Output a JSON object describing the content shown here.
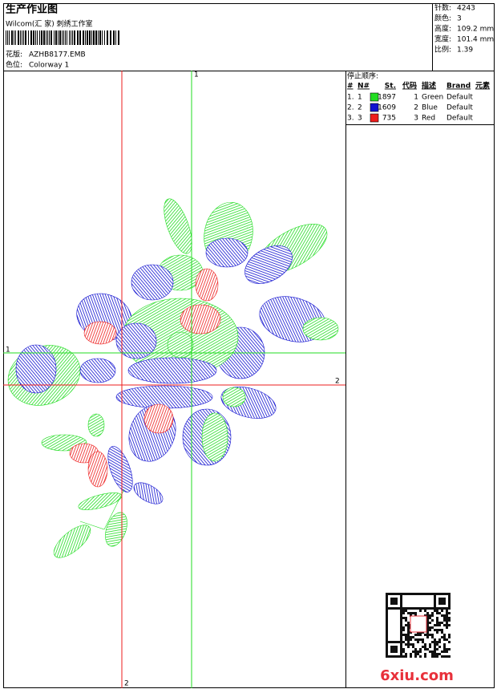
{
  "header": {
    "title": "生产作业图",
    "studio": "Wilcom(汇 家) 刺绣工作室",
    "design_label": "花版:",
    "design": "AZHB8177.EMB",
    "colorway_label": "色位:",
    "colorway": "Colorway 1"
  },
  "stats": [
    {
      "label": "针数:",
      "value": "4243"
    },
    {
      "label": "颜色:",
      "value": "3"
    },
    {
      "label": "高度:",
      "value": "109.2 mm"
    },
    {
      "label": "宽度:",
      "value": "101.4 mm"
    },
    {
      "label": "比例:",
      "value": "1.39"
    }
  ],
  "stop_sequence": {
    "title": "停止顺序:",
    "columns": [
      "#",
      "N#",
      "St.",
      "代码",
      "描述",
      "Brand",
      "元素"
    ],
    "rows": [
      {
        "index": "1.",
        "needle": "1",
        "color": "#22dd22",
        "stitches": "1897",
        "code": "1",
        "description": "Green",
        "brand": "Default"
      },
      {
        "index": "2.",
        "needle": "2",
        "color": "#1010d0",
        "stitches": "1609",
        "code": "2",
        "description": "Blue",
        "brand": "Default"
      },
      {
        "index": "3.",
        "needle": "3",
        "color": "#ee1c1c",
        "stitches": "735",
        "code": "3",
        "description": "Red",
        "brand": "Default"
      }
    ]
  },
  "guides": {
    "vertical_green": "1",
    "vertical_red": "2",
    "horizontal_green": "1",
    "horizontal_red": "2"
  },
  "watermark": "6xiu.com"
}
